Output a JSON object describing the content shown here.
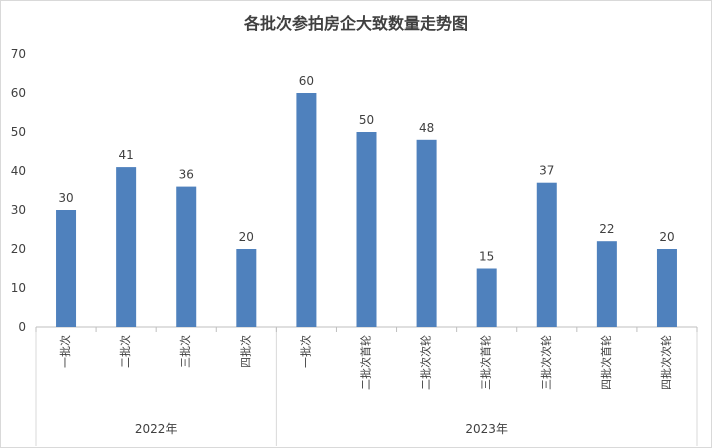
{
  "chart_data": {
    "type": "bar",
    "title": "各批次参拍房企大致数量走势图",
    "groups": [
      {
        "name": "2022年",
        "categories": [
          "一批次",
          "二批次",
          "三批次",
          "四批次"
        ]
      },
      {
        "name": "2023年",
        "categories": [
          "一批次",
          "二批次首轮",
          "二批次次轮",
          "三批次首轮",
          "三批次次轮",
          "四批次首轮",
          "四批次次轮"
        ]
      }
    ],
    "categories": [
      "一批次",
      "二批次",
      "三批次",
      "四批次",
      "一批次",
      "二批次首轮",
      "二批次次轮",
      "三批次首轮",
      "三批次次轮",
      "四批次首轮",
      "四批次次轮"
    ],
    "values": [
      30,
      41,
      36,
      20,
      60,
      50,
      48,
      15,
      37,
      22,
      20
    ],
    "ylim": [
      0,
      70
    ],
    "yticks": [
      0,
      10,
      20,
      30,
      40,
      50,
      60,
      70
    ],
    "bar_color": "#4f81bd",
    "grid": false,
    "data_labels": true
  }
}
